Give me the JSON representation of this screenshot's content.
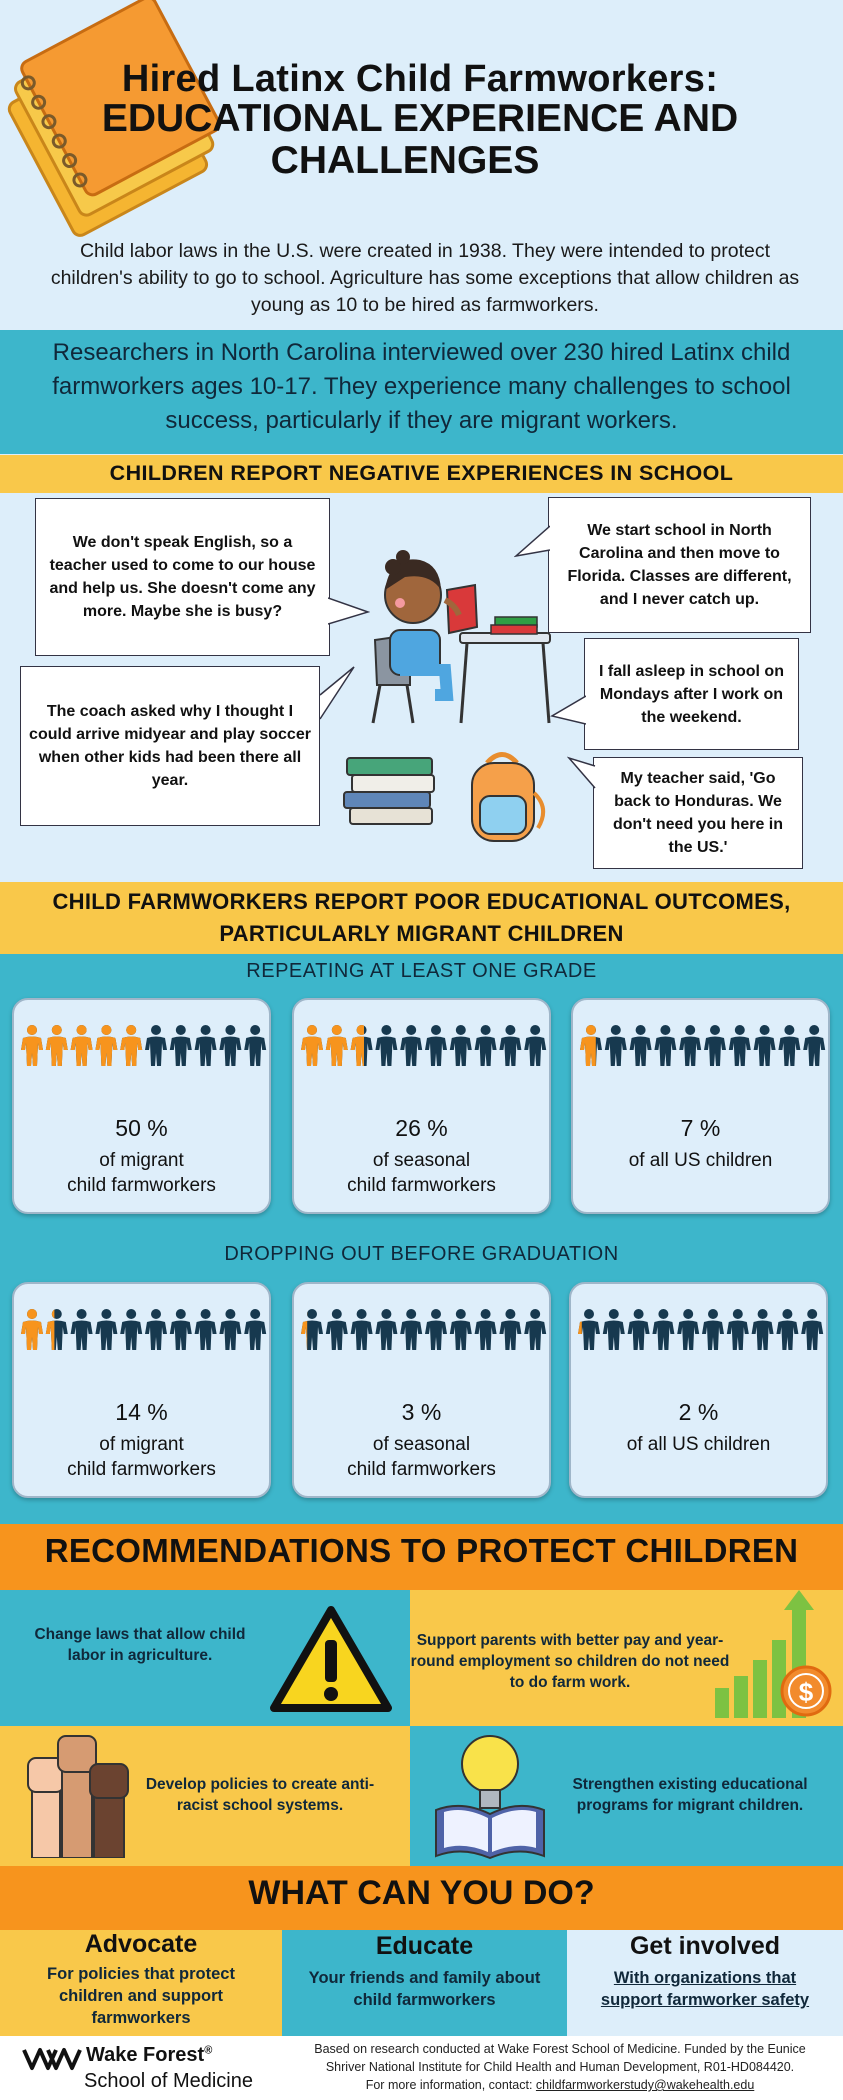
{
  "header": {
    "title_line1": "Hired Latinx Child Farmworkers:",
    "title_line2": "EDUCATIONAL EXPERIENCE AND",
    "title_line3": "CHALLENGES",
    "intro": "Child labor laws in the U.S. were created in 1938. They were intended to protect children's ability to go to school. Agriculture has some exceptions that allow children as young as 10 to be hired as farmworkers."
  },
  "research": "Researchers in North Carolina interviewed over 230 hired Latinx child farmworkers ages 10-17. They experience many challenges to school success, particularly if they are migrant workers.",
  "negative": {
    "heading": "CHILDREN REPORT NEGATIVE EXPERIENCES IN SCHOOL",
    "quotes": [
      "We don't speak English, so a teacher used to come to our house and help us. She doesn't come any more. Maybe she is busy?",
      "The coach asked why I thought I could arrive midyear and play soccer when other kids had been there all year.",
      "We start school in North Carolina and then move to Florida. Classes are different, and I never catch up.",
      "I fall asleep in school on Mondays after I work on the weekend.",
      "My teacher said, 'Go back to Honduras. We don't need you here in the US.'"
    ]
  },
  "outcomes": {
    "heading_line1": "CHILD FARMWORKERS REPORT POOR EDUCATIONAL OUTCOMES,",
    "heading_line2": "PARTICULARLY MIGRANT CHILDREN",
    "repeating": {
      "label": "REPEATING AT LEAST ONE GRADE",
      "cards": [
        {
          "pct": "50 %",
          "line1": "of migrant",
          "line2": "child farmworkers",
          "value": 50
        },
        {
          "pct": "26 %",
          "line1": "of seasonal",
          "line2": "child farmworkers",
          "value": 26
        },
        {
          "pct": "7 %",
          "line1": "of all US children",
          "line2": "",
          "value": 7
        }
      ]
    },
    "dropping": {
      "label": "DROPPING OUT BEFORE GRADUATION",
      "cards": [
        {
          "pct": "14 %",
          "line1": "of migrant",
          "line2": "child farmworkers",
          "value": 14
        },
        {
          "pct": "3 %",
          "line1": "of seasonal",
          "line2": "child farmworkers",
          "value": 3
        },
        {
          "pct": "2 %",
          "line1": "of all US children",
          "line2": "",
          "value": 2
        }
      ]
    },
    "colors": {
      "highlight": "#f7941d",
      "base": "#17394f"
    }
  },
  "recommendations": {
    "heading": "RECOMMENDATIONS TO PROTECT CHILDREN",
    "items": [
      "Change laws that allow child labor in agriculture.",
      "Support parents with better pay and year-round employment so children do not need to do farm work.",
      "Develop policies to create anti-racist school systems.",
      "Strengthen existing educational programs for migrant children."
    ],
    "icons": [
      "warning-icon",
      "growth-chart-icon",
      "raised-fists-icon",
      "book-lightbulb-icon"
    ]
  },
  "actions": {
    "heading": "WHAT CAN YOU DO?",
    "items": [
      {
        "title": "Advocate",
        "text": "For policies that protect children and support farmworkers"
      },
      {
        "title": "Educate",
        "text": "Your friends and family about child farmworkers"
      },
      {
        "title": "Get involved",
        "text": "With organizations that support farmworker safety"
      }
    ]
  },
  "footer": {
    "logo_line1": "Wake Forest",
    "logo_reg": "®",
    "logo_line2": "School of Medicine",
    "note_line1": "Based on research conducted at Wake Forest School of Medicine. Funded by the Eunice",
    "note_line2": "Shriver National Institute for Child Health and Human Development, R01-HD084420.",
    "note_prefix": "For more information, contact: ",
    "email": "childfarmworkerstudy@wakehealth.edu"
  }
}
